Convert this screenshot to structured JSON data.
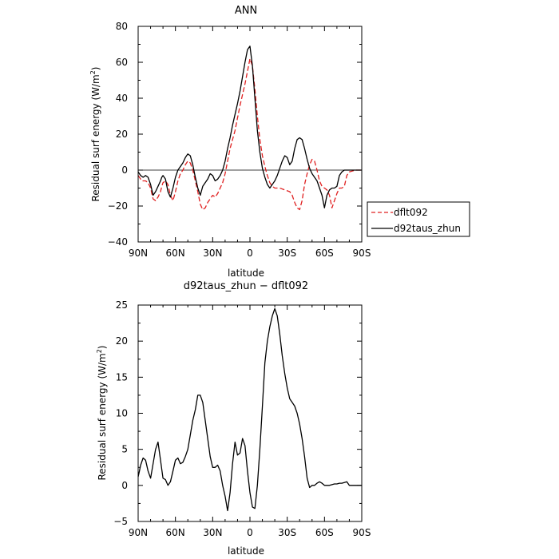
{
  "chart_data": [
    {
      "type": "line",
      "title": "ANN",
      "xlabel": "latitude",
      "ylabel": "Residual surf energy (W/m²)",
      "ylabel_main": "Residual surf energy (W/m",
      "ylabel_sup": "2",
      "ylabel_tail": ")",
      "xlim": [
        90,
        -90
      ],
      "ylim": [
        -40,
        80
      ],
      "xticks": [
        90,
        60,
        30,
        0,
        -30,
        -60,
        -90
      ],
      "xtick_labels": [
        "90N",
        "60N",
        "30N",
        "0",
        "30S",
        "60S",
        "90S"
      ],
      "yticks": [
        -40,
        -20,
        0,
        20,
        40,
        60,
        80
      ],
      "ytick_labels": [
        "−40",
        "−20",
        "0",
        "20",
        "40",
        "60",
        "80"
      ],
      "zero_line": true,
      "legend": {
        "placement": "right",
        "entries": [
          {
            "name": "dflt092",
            "color": "#e02020",
            "dash": true
          },
          {
            "name": "d92taus_zhun",
            "color": "#000000",
            "dash": false
          }
        ]
      },
      "series": [
        {
          "name": "dflt092",
          "color": "#e02020",
          "dash": true,
          "x": [
            90,
            87,
            84,
            82,
            80,
            78,
            76,
            74,
            72,
            71,
            70,
            68,
            66,
            64,
            62,
            60,
            58,
            56,
            54,
            52,
            50,
            48,
            46,
            44,
            42,
            40,
            38,
            36,
            34,
            32,
            30,
            28,
            26,
            24,
            22,
            20,
            18,
            16,
            14,
            12,
            10,
            8,
            6,
            4,
            2,
            0,
            -2,
            -4,
            -6,
            -8,
            -10,
            -12,
            -14,
            -16,
            -18,
            -20,
            -24,
            -28,
            -32,
            -34,
            -36,
            -38,
            -40,
            -42,
            -44,
            -46,
            -48,
            -50,
            -52,
            -54,
            -56,
            -58,
            -60,
            -62,
            -64,
            -66,
            -68,
            -70,
            -72,
            -74,
            -76,
            -78,
            -80,
            -85,
            -90
          ],
          "y": [
            -3,
            -6,
            -6,
            -7,
            -10,
            -16,
            -17,
            -15,
            -12,
            -9,
            -7,
            -6,
            -8,
            -14,
            -17,
            -12,
            -6,
            -2,
            0,
            3,
            5,
            4,
            0,
            -6,
            -12,
            -19,
            -22,
            -21,
            -18,
            -16,
            -14,
            -15,
            -13,
            -10,
            -7,
            -2,
            5,
            12,
            17,
            22,
            29,
            36,
            42,
            48,
            55,
            62,
            58,
            45,
            30,
            17,
            8,
            2,
            -3,
            -7,
            -9,
            -10,
            -10,
            -11,
            -12,
            -14,
            -18,
            -21,
            -22,
            -17,
            -8,
            -2,
            3,
            6,
            5,
            0,
            -6,
            -9,
            -10,
            -11,
            -14,
            -21,
            -17,
            -13,
            -10,
            -10,
            -9,
            -3,
            -1,
            0,
            0
          ]
        },
        {
          "name": "d92taus_zhun",
          "color": "#000000",
          "dash": false,
          "x": [
            90,
            88,
            86,
            84,
            82,
            80,
            78,
            76,
            74,
            72,
            71,
            70,
            68,
            66,
            64,
            62,
            60,
            58,
            56,
            54,
            52,
            50,
            48,
            46,
            44,
            42,
            40,
            38,
            36,
            34,
            32,
            30,
            28,
            26,
            24,
            22,
            20,
            18,
            16,
            14,
            12,
            10,
            8,
            6,
            4,
            2,
            0,
            -2,
            -4,
            -6,
            -8,
            -10,
            -12,
            -14,
            -16,
            -18,
            -20,
            -22,
            -24,
            -26,
            -28,
            -30,
            -32,
            -34,
            -36,
            -38,
            -40,
            -42,
            -44,
            -46,
            -48,
            -50,
            -52,
            -54,
            -56,
            -58,
            -60,
            -62,
            -64,
            -66,
            -68,
            -70,
            -72,
            -74,
            -76,
            -78,
            -80,
            -85,
            -90
          ],
          "y": [
            -1,
            -3,
            -4,
            -3,
            -4,
            -8,
            -14,
            -12,
            -9,
            -6,
            -4,
            -3,
            -5,
            -12,
            -15,
            -10,
            -4,
            0,
            2,
            4,
            7,
            9,
            8,
            3,
            -4,
            -10,
            -14,
            -9,
            -7,
            -5,
            -2,
            -3,
            -6,
            -5,
            -3,
            0,
            5,
            12,
            18,
            25,
            31,
            37,
            44,
            52,
            60,
            67,
            69,
            58,
            40,
            22,
            10,
            1,
            -4,
            -8,
            -10,
            -8,
            -6,
            -3,
            1,
            5,
            8,
            7,
            3,
            5,
            12,
            17,
            18,
            17,
            12,
            6,
            1,
            -2,
            -4,
            -6,
            -10,
            -14,
            -21,
            -14,
            -11,
            -10,
            -10,
            -9,
            -3,
            -1,
            0,
            0,
            0,
            0,
            0
          ]
        }
      ]
    },
    {
      "type": "line",
      "title": "d92taus_zhun − dflt092",
      "xlabel": "latitude",
      "ylabel": "Residual surf energy (W/m²)",
      "ylabel_main": "Residual surf energy (W/m",
      "ylabel_sup": "2",
      "ylabel_tail": ")",
      "xlim": [
        90,
        -90
      ],
      "ylim": [
        -5,
        25
      ],
      "xticks": [
        90,
        60,
        30,
        0,
        -30,
        -60,
        -90
      ],
      "xtick_labels": [
        "90N",
        "60N",
        "30N",
        "0",
        "30S",
        "60S",
        "90S"
      ],
      "yticks": [
        -5,
        0,
        5,
        10,
        15,
        20,
        25
      ],
      "ytick_labels": [
        "−5",
        "0",
        "5",
        "10",
        "15",
        "20",
        "25"
      ],
      "zero_line": false,
      "series": [
        {
          "name": "",
          "color": "#000000",
          "dash": false,
          "x": [
            90,
            89,
            88,
            86,
            84,
            82,
            80,
            78,
            76,
            74,
            72,
            70,
            68,
            66,
            64,
            62,
            60,
            58,
            56,
            54,
            52,
            50,
            48,
            46,
            44,
            42,
            40,
            38,
            36,
            34,
            32,
            30,
            28,
            26,
            24,
            22,
            20,
            18,
            16,
            14,
            12,
            10,
            8,
            6,
            4,
            2,
            0,
            -2,
            -4,
            -6,
            -8,
            -10,
            -12,
            -14,
            -16,
            -18,
            -20,
            -22,
            -24,
            -26,
            -28,
            -30,
            -32,
            -34,
            -36,
            -38,
            -40,
            -42,
            -44,
            -46,
            -48,
            -50,
            -52,
            -54,
            -56,
            -58,
            -60,
            -62,
            -64,
            -66,
            -68,
            -70,
            -72,
            -74,
            -76,
            -78,
            -80,
            -85,
            -90
          ],
          "y": [
            1.2,
            2,
            2.8,
            3.8,
            3.5,
            2,
            1,
            3,
            5,
            6,
            3.5,
            1,
            0.8,
            0,
            0.5,
            2,
            3.5,
            3.8,
            3,
            3.2,
            4,
            5,
            7,
            9,
            10.5,
            12.5,
            12.5,
            11.5,
            9,
            6.5,
            4,
            2.5,
            2.5,
            2.8,
            2,
            0,
            -1.5,
            -3.5,
            -1,
            3,
            6,
            4.2,
            4.5,
            6.5,
            5.5,
            2,
            -1,
            -3,
            -3.2,
            0,
            5,
            11,
            17,
            20,
            22,
            23.5,
            24.5,
            23.5,
            21,
            18,
            15.5,
            13.5,
            12,
            11.5,
            11,
            10,
            8.5,
            6.5,
            4,
            1,
            -0.3,
            0,
            0,
            0.3,
            0.5,
            0.3,
            0,
            0,
            0,
            0.1,
            0.2,
            0.2,
            0.3,
            0.3,
            0.4,
            0.5,
            0,
            0,
            0
          ]
        }
      ]
    }
  ]
}
